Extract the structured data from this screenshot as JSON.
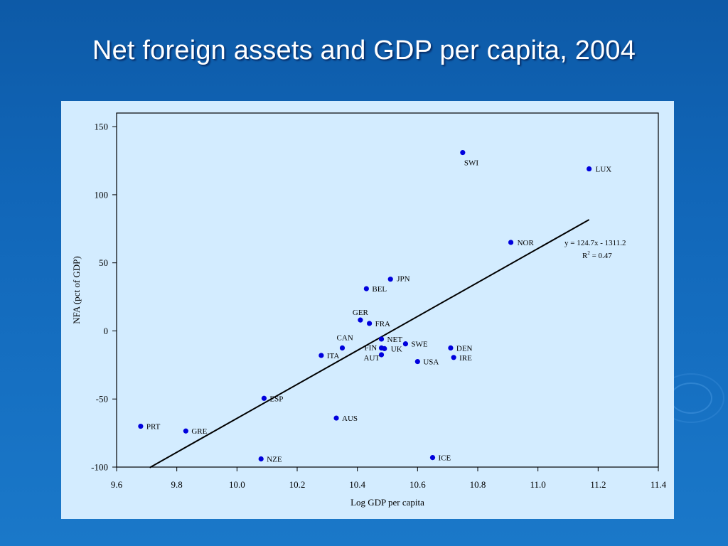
{
  "slide": {
    "title": "Net foreign assets and GDP per capita, 2004"
  },
  "chart_data": {
    "type": "scatter",
    "title": "",
    "xlabel": "Log GDP per capita",
    "ylabel": "NFA (pct of GDP)",
    "xlim": [
      9.6,
      11.4
    ],
    "ylim": [
      -100,
      160
    ],
    "xticks": [
      "9.6",
      "9.8",
      "10.0",
      "10.2",
      "10.4",
      "10.6",
      "10.8",
      "11.0",
      "11.2",
      "11.4"
    ],
    "yticks": [
      "150",
      "100",
      "50",
      "0",
      "-50",
      "-100"
    ],
    "ytick_values": [
      150,
      100,
      50,
      0,
      -50,
      -100
    ],
    "xtick_values": [
      9.6,
      9.8,
      10.0,
      10.2,
      10.4,
      10.6,
      10.8,
      11.0,
      11.2,
      11.4
    ],
    "marker_color": "#0000dd",
    "points": [
      {
        "label": "SWI",
        "x": 10.75,
        "y": 131
      },
      {
        "label": "LUX",
        "x": 11.17,
        "y": 119
      },
      {
        "label": "NOR",
        "x": 10.91,
        "y": 65
      },
      {
        "label": "JPN",
        "x": 10.51,
        "y": 38
      },
      {
        "label": "BEL",
        "x": 10.43,
        "y": 31
      },
      {
        "label": "GER",
        "x": 10.41,
        "y": 8
      },
      {
        "label": "FRA",
        "x": 10.44,
        "y": 5.5
      },
      {
        "label": "NET",
        "x": 10.48,
        "y": -6
      },
      {
        "label": "CAN",
        "x": 10.35,
        "y": -12.5
      },
      {
        "label": "FIN",
        "x": 10.48,
        "y": -12.5
      },
      {
        "label": "UK",
        "x": 10.49,
        "y": -13
      },
      {
        "label": "AUT",
        "x": 10.48,
        "y": -17.5
      },
      {
        "label": "SWE",
        "x": 10.56,
        "y": -9.5
      },
      {
        "label": "ITA",
        "x": 10.28,
        "y": -18
      },
      {
        "label": "USA",
        "x": 10.6,
        "y": -22.5
      },
      {
        "label": "DEN",
        "x": 10.71,
        "y": -12.5
      },
      {
        "label": "IRE",
        "x": 10.72,
        "y": -19.5
      },
      {
        "label": "ESP",
        "x": 10.09,
        "y": -49.5
      },
      {
        "label": "AUS",
        "x": 10.33,
        "y": -64
      },
      {
        "label": "PRT",
        "x": 9.68,
        "y": -70
      },
      {
        "label": "GRE",
        "x": 9.83,
        "y": -73.5
      },
      {
        "label": "NZE",
        "x": 10.08,
        "y": -94
      },
      {
        "label": "ICE",
        "x": 10.65,
        "y": -93
      }
    ],
    "trendline": {
      "slope": 124.7,
      "intercept": -1311.2,
      "x_range": [
        9.71,
        11.17
      ],
      "equation": "y = 124.7x - 1311.2",
      "r2_prefix": "R",
      "r2_sup": "2",
      "r2_suffix": " = 0.47"
    },
    "grid": false,
    "legend": "none"
  }
}
